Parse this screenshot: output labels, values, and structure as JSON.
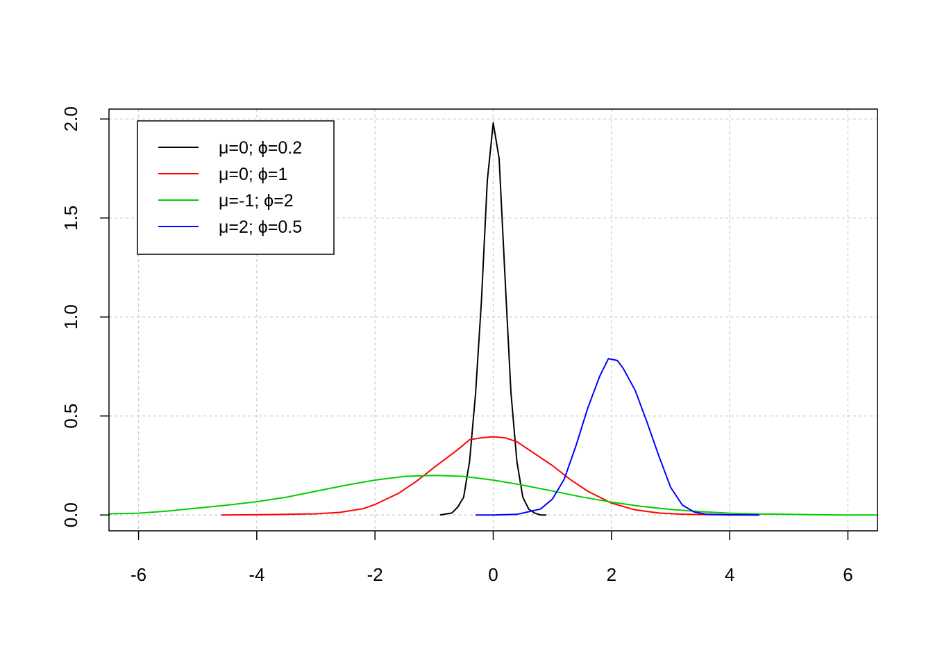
{
  "chart_data": {
    "type": "line",
    "title": "",
    "xlabel": "",
    "ylabel": "",
    "xlim": [
      -6.5,
      6.5
    ],
    "ylim": [
      -0.08,
      2.05
    ],
    "xticks": [
      -6,
      -4,
      -2,
      0,
      2,
      4,
      6
    ],
    "yticks": [
      0.0,
      0.5,
      1.0,
      1.5,
      2.0
    ],
    "xtick_labels": [
      "-6",
      "-4",
      "-2",
      "0",
      "2",
      "4",
      "6"
    ],
    "ytick_labels": [
      "0.0",
      "0.5",
      "1.0",
      "1.5",
      "2.0"
    ],
    "grid": true,
    "legend_position": "top-left",
    "series": [
      {
        "name": "μ=0; ϕ=0.2",
        "color": "#000000",
        "x": [
          -0.9,
          -0.7,
          -0.6,
          -0.5,
          -0.4,
          -0.3,
          -0.2,
          -0.1,
          0.0,
          0.1,
          0.2,
          0.3,
          0.4,
          0.5,
          0.6,
          0.7,
          0.8,
          0.9
        ],
        "y": [
          0.0,
          0.01,
          0.04,
          0.09,
          0.27,
          0.61,
          1.08,
          1.69,
          1.98,
          1.8,
          1.2,
          0.62,
          0.27,
          0.09,
          0.03,
          0.01,
          0.0,
          0.0
        ]
      },
      {
        "name": "μ=0; ϕ=1",
        "color": "#ff0000",
        "x": [
          -4.6,
          -4.0,
          -3.5,
          -3.0,
          -2.6,
          -2.2,
          -2.0,
          -1.6,
          -1.3,
          -1.0,
          -0.6,
          -0.4,
          -0.2,
          0.0,
          0.2,
          0.4,
          0.6,
          1.0,
          1.3,
          1.6,
          2.0,
          2.4,
          2.8,
          3.2,
          3.6,
          4.0,
          4.5
        ],
        "y": [
          0.0,
          0.001,
          0.003,
          0.006,
          0.013,
          0.032,
          0.053,
          0.11,
          0.17,
          0.24,
          0.33,
          0.38,
          0.39,
          0.395,
          0.39,
          0.37,
          0.33,
          0.25,
          0.18,
          0.12,
          0.06,
          0.026,
          0.01,
          0.004,
          0.002,
          0.0,
          0.0
        ]
      },
      {
        "name": "μ=-1; ϕ=2",
        "color": "#00cd00",
        "x": [
          -6.5,
          -6.0,
          -5.5,
          -5.0,
          -4.5,
          -4.0,
          -3.5,
          -3.0,
          -2.5,
          -2.0,
          -1.5,
          -1.0,
          -0.5,
          0.0,
          0.5,
          1.0,
          1.5,
          2.0,
          2.5,
          3.0,
          3.5,
          4.0,
          4.5,
          5.0,
          5.5,
          6.0,
          6.5
        ],
        "y": [
          0.006,
          0.009,
          0.02,
          0.035,
          0.05,
          0.067,
          0.09,
          0.12,
          0.15,
          0.176,
          0.195,
          0.2,
          0.195,
          0.176,
          0.151,
          0.121,
          0.091,
          0.065,
          0.044,
          0.028,
          0.017,
          0.009,
          0.005,
          0.003,
          0.001,
          0.0,
          0.0
        ]
      },
      {
        "name": "μ=2; ϕ=0.5",
        "color": "#0000ff",
        "x": [
          -0.3,
          0.0,
          0.4,
          0.8,
          1.0,
          1.2,
          1.4,
          1.6,
          1.8,
          1.95,
          2.1,
          2.2,
          2.4,
          2.6,
          2.8,
          3.0,
          3.2,
          3.4,
          3.6,
          4.0,
          4.5
        ],
        "y": [
          0.0,
          0.0,
          0.003,
          0.03,
          0.08,
          0.18,
          0.35,
          0.54,
          0.7,
          0.79,
          0.78,
          0.74,
          0.63,
          0.47,
          0.3,
          0.14,
          0.05,
          0.015,
          0.004,
          0.001,
          0.0
        ]
      }
    ]
  }
}
